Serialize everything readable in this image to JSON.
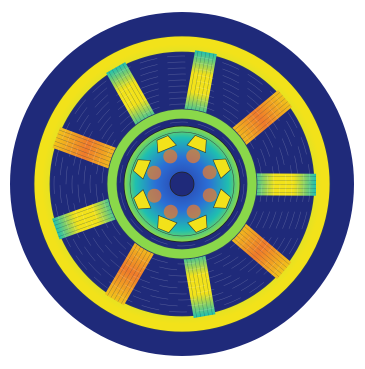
{
  "colors": {
    "background": "#ffffff",
    "airgap": "#1f2a7a",
    "outline": "#222222",
    "low_field": "#2b6fd6",
    "mid_field": "#1fbfb0",
    "high_field": "#f2e21a",
    "saturation": "#f07a2a",
    "center_bore": "#1f2a7a"
  },
  "icons": {
    "stator": "stator-icon",
    "rotor": "rotor-icon",
    "flux-lines": "flux-lines-icon"
  }
}
